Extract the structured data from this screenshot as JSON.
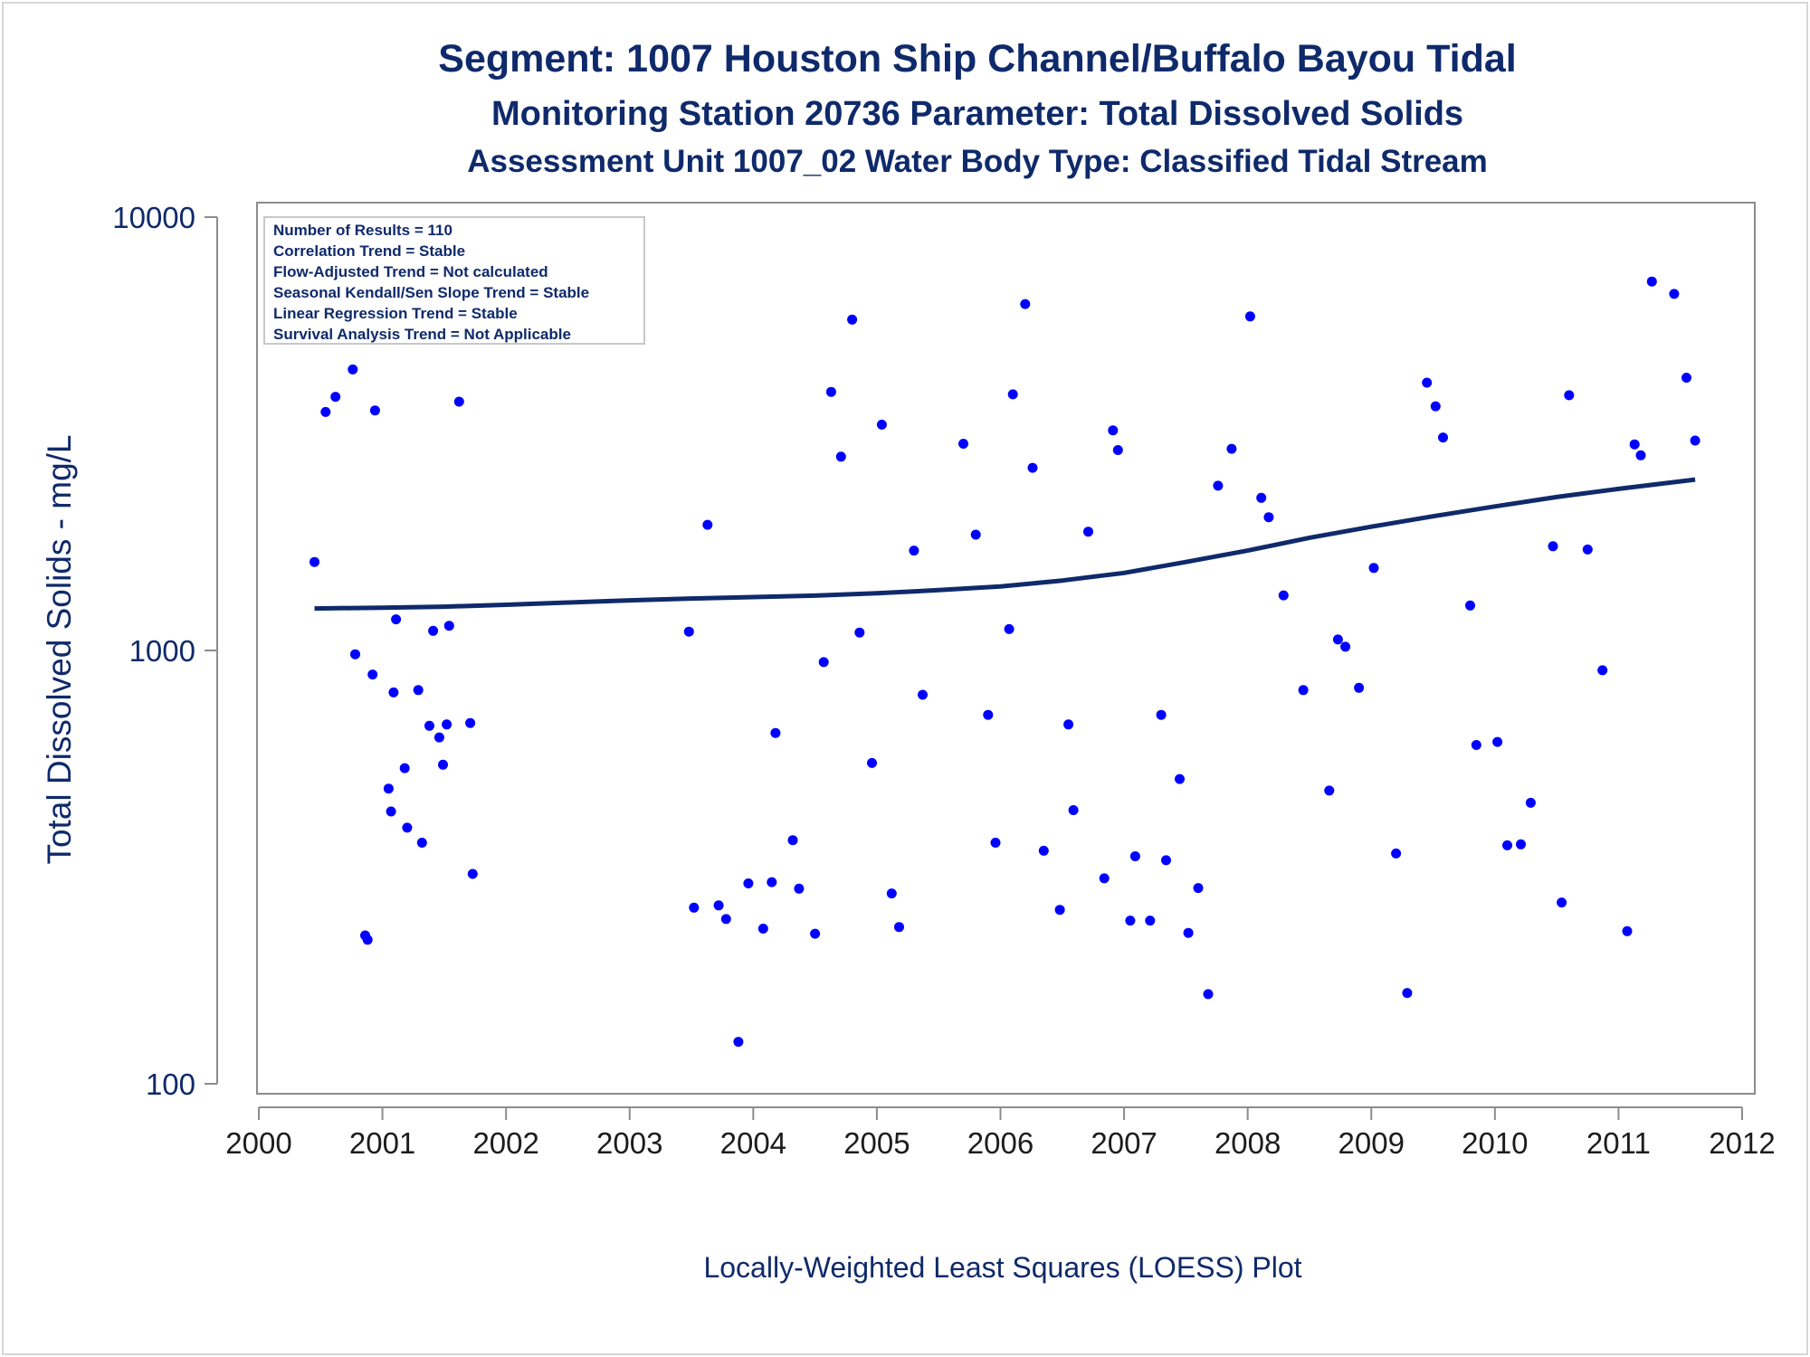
{
  "colors": {
    "point": "#0000ff",
    "trend": "#0f2a6b",
    "text": "#0f2a6b",
    "axis": "#8c8c8c"
  },
  "chart_data": {
    "type": "scatter",
    "title": "Segment: 1007  Houston Ship Channel/Buffalo Bayou Tidal",
    "subtitle": "Monitoring Station 20736 Parameter: Total Dissolved Solids",
    "subtitle2": "Assessment Unit 1007_02   Water Body Type: Classified Tidal Stream",
    "xlabel": "Locally-Weighted Least Squares (LOESS) Plot",
    "ylabel": "Total Dissolved Solids - mg/L",
    "yscale": "log",
    "xlim": [
      2000,
      2012
    ],
    "ylim": [
      100,
      10000
    ],
    "x_ticks": [
      "2000",
      "2001",
      "2002",
      "2003",
      "2004",
      "2005",
      "2006",
      "2007",
      "2008",
      "2009",
      "2010",
      "2011",
      "2012"
    ],
    "y_ticks": [
      "100",
      "1000",
      "10000"
    ],
    "grid": false,
    "legend_position": "top-left",
    "info_box": [
      "Number of Results = 110",
      "Correlation Trend = Stable",
      "Flow-Adjusted Trend = Not calculated",
      "Seasonal Kendall/Sen Slope Trend = Stable",
      "Linear Regression Trend = Stable",
      "Survival Analysis Trend = Not Applicable"
    ],
    "series": [
      {
        "kind": "points",
        "points": [
          [
            2000.45,
            1600
          ],
          [
            2000.54,
            3550
          ],
          [
            2000.62,
            3850
          ],
          [
            2000.76,
            4450
          ],
          [
            2000.78,
            980
          ],
          [
            2000.86,
            220
          ],
          [
            2000.88,
            215
          ],
          [
            2000.92,
            880
          ],
          [
            2000.94,
            3580
          ],
          [
            2001.05,
            480
          ],
          [
            2001.07,
            425
          ],
          [
            2001.09,
            800
          ],
          [
            2001.11,
            1180
          ],
          [
            2001.18,
            535
          ],
          [
            2001.2,
            390
          ],
          [
            2001.29,
            810
          ],
          [
            2001.32,
            360
          ],
          [
            2001.38,
            670
          ],
          [
            2001.41,
            1110
          ],
          [
            2001.46,
            630
          ],
          [
            2001.49,
            545
          ],
          [
            2001.52,
            675
          ],
          [
            2001.54,
            1140
          ],
          [
            2001.62,
            3750
          ],
          [
            2001.71,
            680
          ],
          [
            2001.73,
            305
          ],
          [
            2003.48,
            1105
          ],
          [
            2003.52,
            255
          ],
          [
            2003.63,
            1950
          ],
          [
            2003.72,
            258
          ],
          [
            2003.78,
            240
          ],
          [
            2003.88,
            125
          ],
          [
            2003.96,
            290
          ],
          [
            2004.08,
            228
          ],
          [
            2004.15,
            292
          ],
          [
            2004.18,
            645
          ],
          [
            2004.32,
            365
          ],
          [
            2004.37,
            282
          ],
          [
            2004.5,
            222
          ],
          [
            2004.57,
            940
          ],
          [
            2004.63,
            3950
          ],
          [
            2004.71,
            2800
          ],
          [
            2004.8,
            5800
          ],
          [
            2004.86,
            1100
          ],
          [
            2004.96,
            550
          ],
          [
            2005.04,
            3320
          ],
          [
            2005.12,
            275
          ],
          [
            2005.18,
            230
          ],
          [
            2005.3,
            1700
          ],
          [
            2005.37,
            790
          ],
          [
            2005.7,
            3000
          ],
          [
            2005.8,
            1850
          ],
          [
            2005.9,
            710
          ],
          [
            2005.96,
            360
          ],
          [
            2006.07,
            1120
          ],
          [
            2006.1,
            3900
          ],
          [
            2006.2,
            6300
          ],
          [
            2006.26,
            2640
          ],
          [
            2006.35,
            345
          ],
          [
            2006.48,
            252
          ],
          [
            2006.55,
            675
          ],
          [
            2006.59,
            428
          ],
          [
            2006.71,
            1880
          ],
          [
            2006.84,
            298
          ],
          [
            2006.91,
            3220
          ],
          [
            2006.95,
            2900
          ],
          [
            2007.05,
            238
          ],
          [
            2007.09,
            335
          ],
          [
            2007.21,
            238
          ],
          [
            2007.3,
            710
          ],
          [
            2007.34,
            328
          ],
          [
            2007.45,
            505
          ],
          [
            2007.52,
            223
          ],
          [
            2007.6,
            283
          ],
          [
            2007.68,
            161
          ],
          [
            2007.76,
            2400
          ],
          [
            2007.87,
            2920
          ],
          [
            2008.02,
            5900
          ],
          [
            2008.11,
            2250
          ],
          [
            2008.17,
            2030
          ],
          [
            2008.29,
            1340
          ],
          [
            2008.45,
            810
          ],
          [
            2008.66,
            475
          ],
          [
            2008.73,
            1060
          ],
          [
            2008.79,
            1020
          ],
          [
            2008.9,
            820
          ],
          [
            2009.02,
            1550
          ],
          [
            2009.2,
            340
          ],
          [
            2009.29,
            162
          ],
          [
            2009.45,
            4150
          ],
          [
            2009.52,
            3660
          ],
          [
            2009.58,
            3100
          ],
          [
            2009.8,
            1270
          ],
          [
            2009.85,
            605
          ],
          [
            2010.02,
            615
          ],
          [
            2010.1,
            355
          ],
          [
            2010.21,
            357
          ],
          [
            2010.29,
            445
          ],
          [
            2010.47,
            1740
          ],
          [
            2010.54,
            262
          ],
          [
            2010.6,
            3880
          ],
          [
            2010.75,
            1710
          ],
          [
            2010.87,
            900
          ],
          [
            2011.07,
            225
          ],
          [
            2011.13,
            2990
          ],
          [
            2011.18,
            2820
          ],
          [
            2011.27,
            7100
          ],
          [
            2011.45,
            6650
          ],
          [
            2011.55,
            4260
          ],
          [
            2011.62,
            3050
          ]
        ]
      },
      {
        "kind": "trend",
        "points": [
          [
            2000.45,
            1250
          ],
          [
            2001.0,
            1255
          ],
          [
            2001.5,
            1262
          ],
          [
            2002.0,
            1275
          ],
          [
            2002.5,
            1290
          ],
          [
            2003.0,
            1305
          ],
          [
            2003.5,
            1318
          ],
          [
            2004.0,
            1328
          ],
          [
            2004.5,
            1338
          ],
          [
            2005.0,
            1355
          ],
          [
            2005.5,
            1378
          ],
          [
            2006.0,
            1405
          ],
          [
            2006.5,
            1450
          ],
          [
            2007.0,
            1510
          ],
          [
            2007.5,
            1600
          ],
          [
            2008.0,
            1700
          ],
          [
            2008.5,
            1820
          ],
          [
            2009.0,
            1930
          ],
          [
            2009.5,
            2040
          ],
          [
            2010.0,
            2150
          ],
          [
            2010.5,
            2260
          ],
          [
            2011.0,
            2360
          ],
          [
            2011.62,
            2480
          ]
        ]
      }
    ]
  }
}
